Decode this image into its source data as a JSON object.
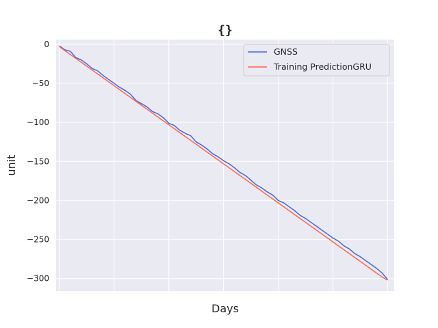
{
  "chart_data": {
    "type": "line",
    "title": "{}",
    "xlabel": "Days",
    "ylabel": "unit",
    "x_ticks_labeled": false,
    "x_tick_count": 7,
    "xlim": [
      -3,
      306
    ],
    "ylim": [
      -316,
      6
    ],
    "yticks": [
      0,
      -50,
      -100,
      -150,
      -200,
      -250,
      -300
    ],
    "ytick_labels": [
      "0",
      "−50",
      "−100",
      "−150",
      "−200",
      "−250",
      "−300"
    ],
    "grid": true,
    "legend_position": "top-right",
    "series": [
      {
        "name": "GNSS",
        "color": "#4169e1",
        "x": [
          0,
          5,
          10,
          15,
          20,
          25,
          30,
          35,
          40,
          45,
          50,
          55,
          60,
          65,
          70,
          75,
          80,
          85,
          90,
          95,
          100,
          105,
          110,
          115,
          120,
          125,
          130,
          135,
          140,
          145,
          150,
          155,
          160,
          165,
          170,
          175,
          180,
          185,
          190,
          195,
          200,
          205,
          210,
          215,
          220,
          225,
          230,
          235,
          240,
          245,
          250,
          255,
          260,
          265,
          270,
          275,
          280,
          285,
          290,
          295,
          300
        ],
        "y": [
          -2,
          -7,
          -9,
          -17,
          -20,
          -25,
          -31,
          -34,
          -40,
          -45,
          -50,
          -55,
          -59,
          -64,
          -72,
          -76,
          -80,
          -86,
          -89,
          -94,
          -101,
          -104,
          -110,
          -114,
          -117,
          -125,
          -129,
          -134,
          -140,
          -144,
          -149,
          -153,
          -158,
          -164,
          -168,
          -174,
          -180,
          -184,
          -189,
          -193,
          -200,
          -203,
          -208,
          -213,
          -219,
          -223,
          -228,
          -233,
          -238,
          -243,
          -248,
          -252,
          -258,
          -262,
          -268,
          -272,
          -277,
          -282,
          -287,
          -293,
          -301
        ]
      },
      {
        "name": "Training PredictionGRU",
        "color": "#ff6347",
        "x": [
          0,
          5,
          10,
          15,
          20,
          25,
          30,
          35,
          40,
          45,
          50,
          55,
          60,
          65,
          70,
          75,
          80,
          85,
          90,
          95,
          100,
          105,
          110,
          115,
          120,
          125,
          130,
          135,
          140,
          145,
          150,
          155,
          160,
          165,
          170,
          175,
          180,
          185,
          190,
          195,
          200,
          205,
          210,
          215,
          220,
          225,
          230,
          235,
          240,
          245,
          250,
          255,
          260,
          265,
          270,
          275,
          280,
          285,
          290,
          295,
          300
        ],
        "y": [
          -3,
          -8,
          -13,
          -18,
          -23,
          -28,
          -33,
          -38,
          -43,
          -48,
          -53,
          -58,
          -63,
          -68,
          -73,
          -78,
          -83,
          -88,
          -93,
          -98,
          -103,
          -108,
          -113,
          -118,
          -123,
          -128,
          -133,
          -138,
          -143,
          -148,
          -153,
          -158,
          -163,
          -168,
          -173,
          -178,
          -183,
          -188,
          -193,
          -198,
          -203,
          -208,
          -213,
          -218,
          -223,
          -228,
          -233,
          -238,
          -243,
          -248,
          -253,
          -258,
          -263,
          -268,
          -273,
          -278,
          -283,
          -288,
          -293,
          -298,
          -302
        ]
      }
    ]
  }
}
